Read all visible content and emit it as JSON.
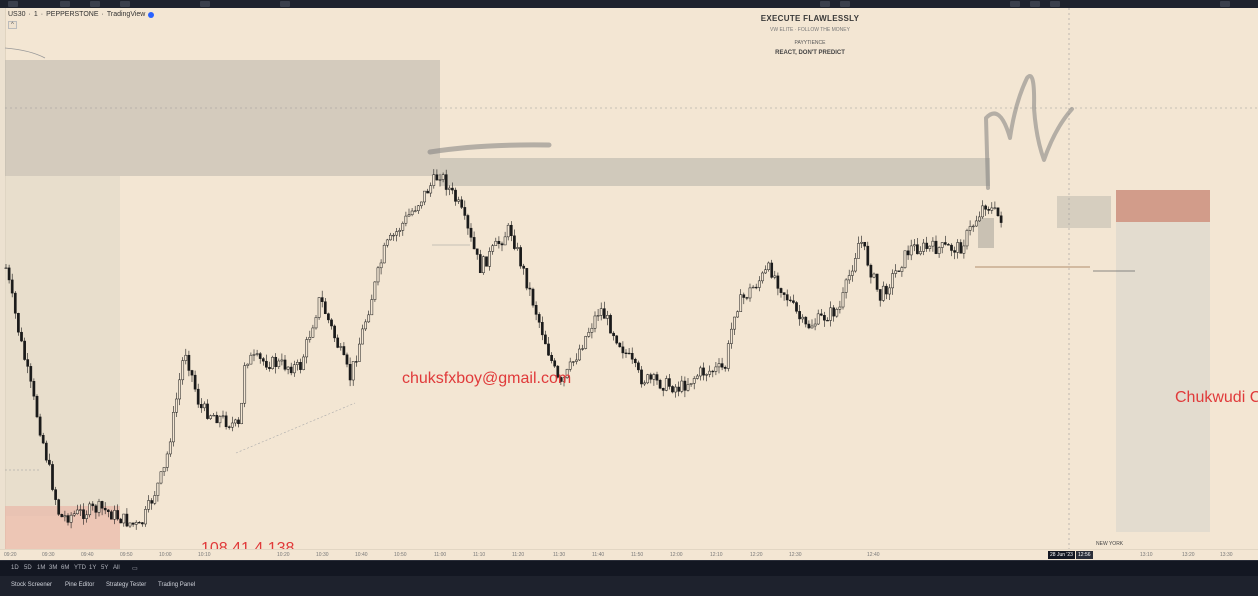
{
  "symbol": {
    "ticker": "US30",
    "timeframe": "1",
    "broker": "PEPPERSTONE",
    "platform": "TradingView"
  },
  "watermark": {
    "title": "EXECUTE FLAWLESSLY",
    "subtitle": "VW ELITE · FOLLOW THE MONEY",
    "line3": "PAYYTIENCE",
    "line4": "REACT, DON'T PREDICT"
  },
  "overlays": {
    "email": "chuksfxboy@gmail.com",
    "ip": "108.41.4.138",
    "name": "Chukwudi C"
  },
  "session_label": "NEW YORK",
  "time_axis": [
    "09:20",
    "09:30",
    "09:40",
    "09:50",
    "10:00",
    "10:10",
    "10:20",
    "10:30",
    "10:40",
    "10:50",
    "11:00",
    "11:10",
    "11:20",
    "11:30",
    "11:40",
    "11:50",
    "12:00",
    "12:10",
    "12:20",
    "12:30",
    "12:40",
    "13:10",
    "13:20",
    "13:30"
  ],
  "time_badges": [
    "28 Jun '23",
    "12:56"
  ],
  "timeframes": [
    "1D",
    "5D",
    "1M",
    "3M",
    "6M",
    "YTD",
    "1Y",
    "5Y",
    "All"
  ],
  "bottom_tabs": [
    "Stock Screener",
    "Pine Editor",
    "Strategy Tester",
    "Trading Panel"
  ],
  "colors": {
    "chart_bg": "#f3e6d3",
    "candle": "#1a1a1a",
    "zone_gray": "#b9b5ab",
    "zone_red": "#c98a78",
    "overlay_text": "#e03a3a"
  }
}
